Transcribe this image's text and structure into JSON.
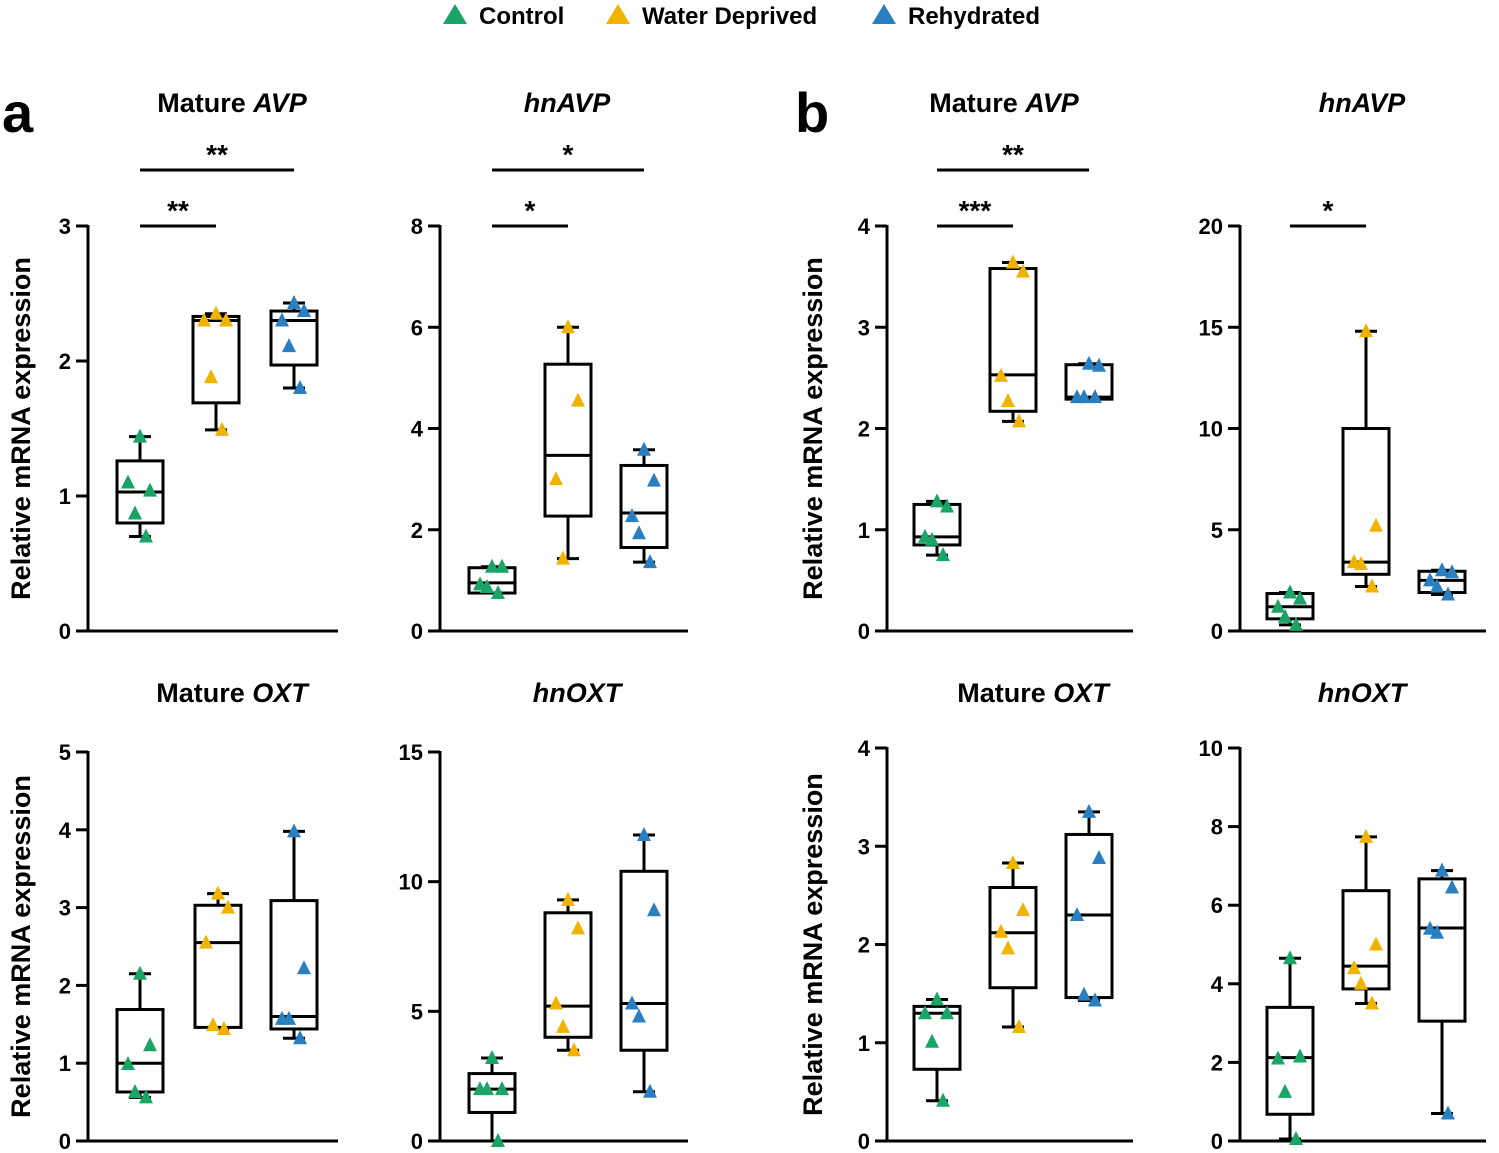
{
  "legend": [
    {
      "label": "Control",
      "color": "#1aa566"
    },
    {
      "label": "Water Deprived",
      "color": "#f0b400"
    },
    {
      "label": "Rehydrated",
      "color": "#2a7fc0"
    }
  ],
  "panel_labels": [
    "a",
    "b"
  ],
  "colors": {
    "control": "#1aa566",
    "water_deprived": "#f0b400",
    "rehydrated": "#2a7fc0",
    "axis": "#000000"
  },
  "chart_data": [
    {
      "id": "a-avp",
      "type": "box",
      "panel": "a",
      "title_prefix": "Mature ",
      "title_gene": "AVP",
      "ylabel": "Relative mRNA expression",
      "ylim": [
        0,
        3
      ],
      "yticks": [
        0,
        1,
        2,
        3
      ],
      "series": [
        {
          "name": "Control",
          "points": [
            1.44,
            1.04,
            1.1,
            0.87,
            0.7
          ],
          "box": {
            "min": 0.7,
            "q1": 0.8,
            "median": 1.03,
            "q3": 1.26,
            "max": 1.44
          }
        },
        {
          "name": "Water Deprived",
          "points": [
            2.35,
            2.3,
            2.3,
            1.88,
            1.49
          ],
          "box": {
            "min": 1.49,
            "q1": 1.69,
            "median": 2.3,
            "q3": 2.33,
            "max": 2.35
          }
        },
        {
          "name": "Rehydrated",
          "points": [
            2.43,
            2.37,
            2.3,
            2.11,
            1.8
          ],
          "box": {
            "min": 1.8,
            "q1": 1.97,
            "median": 2.3,
            "q3": 2.37,
            "max": 2.43
          }
        }
      ],
      "significance": [
        {
          "from": 0,
          "to": 1,
          "label": "**",
          "level": 1
        },
        {
          "from": 0,
          "to": 2,
          "label": "**",
          "level": 2
        }
      ]
    },
    {
      "id": "a-hnavp",
      "type": "box",
      "panel": "a",
      "title_prefix": "",
      "title_gene": "hnAVP",
      "ylabel": "",
      "ylim": [
        0,
        8
      ],
      "yticks": [
        0,
        2,
        4,
        6,
        8
      ],
      "series": [
        {
          "name": "Control",
          "points": [
            1.27,
            1.27,
            0.92,
            0.87,
            0.75
          ],
          "box": {
            "min": 0.75,
            "q1": 0.75,
            "median": 0.95,
            "q3": 1.25,
            "max": 1.27
          }
        },
        {
          "name": "Water Deprived",
          "points": [
            6.0,
            4.55,
            3.0,
            1.43
          ],
          "box": {
            "min": 1.43,
            "q1": 2.27,
            "median": 3.47,
            "q3": 5.27,
            "max": 6.0
          }
        },
        {
          "name": "Rehydrated",
          "points": [
            3.58,
            2.97,
            2.27,
            1.93,
            1.36
          ],
          "box": {
            "min": 1.36,
            "q1": 1.65,
            "median": 2.33,
            "q3": 3.27,
            "max": 3.58
          }
        }
      ],
      "significance": [
        {
          "from": 0,
          "to": 1,
          "label": "*",
          "level": 1
        },
        {
          "from": 0,
          "to": 2,
          "label": "*",
          "level": 2
        }
      ]
    },
    {
      "id": "b-avp",
      "type": "box",
      "panel": "b",
      "title_prefix": "Mature ",
      "title_gene": "AVP",
      "ylabel": "Relative mRNA expression",
      "ylim": [
        0,
        4
      ],
      "yticks": [
        0,
        1,
        2,
        3,
        4
      ],
      "series": [
        {
          "name": "Control",
          "points": [
            1.28,
            1.23,
            0.93,
            0.9,
            0.75
          ],
          "box": {
            "min": 0.75,
            "q1": 0.85,
            "median": 0.93,
            "q3": 1.25,
            "max": 1.28
          }
        },
        {
          "name": "Water Deprived",
          "points": [
            3.64,
            3.55,
            2.52,
            2.27,
            2.07
          ],
          "box": {
            "min": 2.07,
            "q1": 2.17,
            "median": 2.53,
            "q3": 3.58,
            "max": 3.64
          }
        },
        {
          "name": "Rehydrated",
          "points": [
            2.64,
            2.62,
            2.31,
            2.31,
            2.31
          ],
          "box": {
            "min": 2.29,
            "q1": 2.29,
            "median": 2.31,
            "q3": 2.63,
            "max": 2.64
          }
        }
      ],
      "significance": [
        {
          "from": 0,
          "to": 1,
          "label": "***",
          "level": 1
        },
        {
          "from": 0,
          "to": 2,
          "label": "**",
          "level": 2
        }
      ]
    },
    {
      "id": "b-hnavp",
      "type": "box",
      "panel": "b",
      "title_prefix": "",
      "title_gene": "hnAVP",
      "ylabel": "",
      "ylim": [
        0,
        20
      ],
      "yticks": [
        0,
        5,
        10,
        15,
        20
      ],
      "series": [
        {
          "name": "Control",
          "points": [
            1.9,
            1.6,
            1.2,
            0.7,
            0.3
          ],
          "box": {
            "min": 0.3,
            "q1": 0.6,
            "median": 1.2,
            "q3": 1.85,
            "max": 1.9
          }
        },
        {
          "name": "Water Deprived",
          "points": [
            14.8,
            5.2,
            3.4,
            3.3,
            2.2
          ],
          "box": {
            "min": 2.2,
            "q1": 2.8,
            "median": 3.4,
            "q3": 10.0,
            "max": 14.8
          }
        },
        {
          "name": "Rehydrated",
          "points": [
            3.0,
            2.9,
            2.5,
            2.2,
            1.8
          ],
          "box": {
            "min": 1.8,
            "q1": 1.9,
            "median": 2.5,
            "q3": 2.95,
            "max": 3.0
          }
        }
      ],
      "significance": [
        {
          "from": 0,
          "to": 1,
          "label": "*",
          "level": 1
        }
      ]
    },
    {
      "id": "a-oxt",
      "type": "box",
      "panel": "a",
      "title_prefix": "Mature ",
      "title_gene": "OXT",
      "ylabel": "Relative mRNA expression",
      "ylim": [
        0,
        5
      ],
      "yticks": [
        0,
        1,
        2,
        3,
        4,
        5
      ],
      "series": [
        {
          "name": "Control",
          "points": [
            2.15,
            1.23,
            0.99,
            0.63,
            0.56
          ],
          "box": {
            "min": 0.56,
            "q1": 0.63,
            "median": 1.0,
            "q3": 1.69,
            "max": 2.15
          }
        },
        {
          "name": "Water Deprived",
          "points": [
            3.18,
            3.0,
            2.55,
            1.49,
            1.44
          ],
          "box": {
            "min": 1.44,
            "q1": 1.46,
            "median": 2.55,
            "q3": 3.03,
            "max": 3.18
          }
        },
        {
          "name": "Rehydrated",
          "points": [
            3.98,
            2.22,
            1.57,
            1.57,
            1.32
          ],
          "box": {
            "min": 1.32,
            "q1": 1.44,
            "median": 1.6,
            "q3": 3.09,
            "max": 3.98
          }
        }
      ],
      "significance": []
    },
    {
      "id": "a-hnoxt",
      "type": "box",
      "panel": "a",
      "title_prefix": "",
      "title_gene": "hnOXT",
      "ylabel": "",
      "ylim": [
        0,
        15
      ],
      "yticks": [
        0,
        5,
        10,
        15
      ],
      "series": [
        {
          "name": "Control",
          "points": [
            3.2,
            2.0,
            2.0,
            2.0,
            0.0
          ],
          "box": {
            "min": 0.0,
            "q1": 1.1,
            "median": 2.0,
            "q3": 2.6,
            "max": 3.2
          }
        },
        {
          "name": "Water Deprived",
          "points": [
            9.3,
            8.2,
            5.3,
            4.4,
            3.5
          ],
          "box": {
            "min": 3.5,
            "q1": 4.0,
            "median": 5.2,
            "q3": 8.8,
            "max": 9.3
          }
        },
        {
          "name": "Rehydrated",
          "points": [
            11.8,
            8.9,
            5.3,
            4.8,
            1.9
          ],
          "box": {
            "min": 1.9,
            "q1": 3.5,
            "median": 5.3,
            "q3": 10.4,
            "max": 11.8
          }
        }
      ],
      "significance": []
    },
    {
      "id": "b-oxt",
      "type": "box",
      "panel": "b",
      "title_prefix": "Mature ",
      "title_gene": "OXT",
      "ylabel": "Relative mRNA expression",
      "ylim": [
        0,
        4
      ],
      "yticks": [
        0,
        1,
        2,
        3,
        4
      ],
      "series": [
        {
          "name": "Control",
          "points": [
            1.44,
            1.3,
            1.3,
            1.01,
            0.41
          ],
          "box": {
            "min": 0.41,
            "q1": 0.73,
            "median": 1.3,
            "q3": 1.37,
            "max": 1.44
          }
        },
        {
          "name": "Water Deprived",
          "points": [
            2.83,
            2.35,
            2.13,
            1.96,
            1.16
          ],
          "box": {
            "min": 1.16,
            "q1": 1.56,
            "median": 2.12,
            "q3": 2.58,
            "max": 2.83
          }
        },
        {
          "name": "Rehydrated",
          "points": [
            3.35,
            2.88,
            2.3,
            1.49,
            1.43
          ],
          "box": {
            "min": 1.43,
            "q1": 1.46,
            "median": 2.3,
            "q3": 3.12,
            "max": 3.35
          }
        }
      ],
      "significance": []
    },
    {
      "id": "b-hnoxt",
      "type": "box",
      "panel": "b",
      "title_prefix": "",
      "title_gene": "hnOXT",
      "ylabel": "",
      "ylim": [
        0,
        10
      ],
      "yticks": [
        0,
        2,
        4,
        6,
        8,
        10
      ],
      "series": [
        {
          "name": "Control",
          "points": [
            4.65,
            2.15,
            2.1,
            1.25,
            0.05
          ],
          "box": {
            "min": 0.05,
            "q1": 0.68,
            "median": 2.12,
            "q3": 3.4,
            "max": 4.65
          }
        },
        {
          "name": "Water Deprived",
          "points": [
            7.74,
            5.0,
            4.4,
            4.0,
            3.5
          ],
          "box": {
            "min": 3.5,
            "q1": 3.87,
            "median": 4.45,
            "q3": 6.37,
            "max": 7.74
          }
        },
        {
          "name": "Rehydrated",
          "points": [
            6.88,
            6.45,
            5.4,
            5.3,
            0.7
          ],
          "box": {
            "min": 0.7,
            "q1": 3.05,
            "median": 5.42,
            "q3": 6.67,
            "max": 6.88
          }
        }
      ],
      "significance": []
    }
  ]
}
